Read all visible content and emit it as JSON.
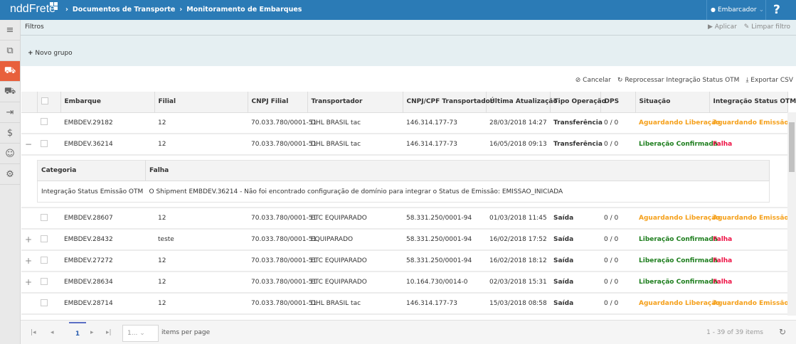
{
  "header": {
    "logo": "nddFrete",
    "breadcrumbs": [
      "Documentos de Transporte",
      "Monitoramento de Embarques"
    ],
    "user": "Embarcador",
    "help": "?",
    "color": "#2b7bb6"
  },
  "sidebar": {
    "items": [
      "menu",
      "documents",
      "shipments",
      "delivery",
      "exit",
      "payments",
      "users",
      "settings"
    ],
    "active_color": "#e8603c"
  },
  "filters": {
    "title": "Filtros",
    "apply": "Aplicar",
    "clear": "Limpar filtro",
    "new_group": "Novo grupo"
  },
  "toolbar": {
    "cancel": "Cancelar",
    "reprocess": "Reprocessar Integração Status OTM",
    "export": "Exportar CSV"
  },
  "table": {
    "headers": [
      "Embarque",
      "Filial",
      "CNPJ Filial",
      "Transportador",
      "CNPJ/CPF Transportador",
      "Última Atualização",
      "Tipo Operação",
      "DPS",
      "Situação",
      "Integração Status OTM"
    ],
    "rows": [
      {
        "expander": "",
        "embarque": "EMBDEV.29182",
        "filial": "12",
        "cnpj": "70.033.780/0001-51",
        "transp": "DHL BRASIL tac",
        "cpf": "146.314.177-73",
        "data": "28/03/2018 14:27",
        "tipo": "Transferência",
        "dps": "0 / 0",
        "situacao": "Aguardando Liberação",
        "sit_c": "orange",
        "integ": "Aguardando Emissão",
        "int_c": "orange"
      },
      {
        "expander": "−",
        "embarque": "EMBDEV.36214",
        "filial": "12",
        "cnpj": "70.033.780/0001-51",
        "transp": "DHL BRASIL tac",
        "cpf": "146.314.177-73",
        "data": "16/05/2018 09:13",
        "tipo": "Transferência",
        "dps": "0 / 0",
        "situacao": "Liberação Confirmada",
        "sit_c": "green",
        "integ": "Falha",
        "int_c": "red"
      },
      {
        "expander": "",
        "embarque": "EMBDEV.28607",
        "filial": "12",
        "cnpj": "70.033.780/0001-51",
        "transp": "ETC EQUIPARADO",
        "cpf": "58.331.250/0001-94",
        "data": "01/03/2018 11:45",
        "tipo": "Saída",
        "dps": "0 / 0",
        "situacao": "Aguardando Liberação",
        "sit_c": "orange",
        "integ": "Aguardando Emissão",
        "int_c": "orange"
      },
      {
        "expander": "+",
        "embarque": "EMBDEV.28432",
        "filial": "teste",
        "cnpj": "70.033.780/0001-51",
        "transp": "EQUIPARADO",
        "cpf": "58.331.250/0001-94",
        "data": "16/02/2018 17:52",
        "tipo": "Saída",
        "dps": "0 / 0",
        "situacao": "Liberação Confirmada",
        "sit_c": "green",
        "integ": "Falha",
        "int_c": "red"
      },
      {
        "expander": "+",
        "embarque": "EMBDEV.27272",
        "filial": "12",
        "cnpj": "70.033.780/0001-51",
        "transp": "ETC EQUIPARADO",
        "cpf": "58.331.250/0001-94",
        "data": "16/02/2018 18:12",
        "tipo": "Saída",
        "dps": "0 / 0",
        "situacao": "Liberação Confirmada",
        "sit_c": "green",
        "integ": "Falha",
        "int_c": "red"
      },
      {
        "expander": "+",
        "embarque": "EMBDEV.28634",
        "filial": "12",
        "cnpj": "70.033.780/0001-51",
        "transp": "ETC EQUIPARADO",
        "cpf": "10.164.730/0014-0",
        "data": "02/03/2018 15:31",
        "tipo": "Saída",
        "dps": "0 / 0",
        "situacao": "Liberação Confirmada",
        "sit_c": "green",
        "integ": "Falha",
        "int_c": "red"
      },
      {
        "expander": "",
        "embarque": "EMBDEV.28714",
        "filial": "12",
        "cnpj": "70.033.780/0001-51",
        "transp": "DHL BRASIL tac",
        "cpf": "146.314.177-73",
        "data": "15/03/2018 08:58",
        "tipo": "Saída",
        "dps": "0 / 0",
        "situacao": "Aguardando Liberação",
        "sit_c": "orange",
        "integ": "Aguardando Emissão",
        "int_c": "orange"
      }
    ],
    "detail": {
      "headers": [
        "Categoria",
        "Falha"
      ],
      "categoria": "Integração Status Emissão OTM",
      "falha": "O Shipment EMBDEV.36214 - Não foi encontrado configuração de domínio para integrar o Status de Emissão: EMISSAO_INICIADA"
    }
  },
  "pager": {
    "page": "1",
    "page_size": "1...",
    "items_per_page": "items per page",
    "summary": "1 - 39 of 39 items"
  },
  "colors": {
    "orange": "#f5a01a",
    "green": "#1e7e1e",
    "red": "#ee1144"
  }
}
